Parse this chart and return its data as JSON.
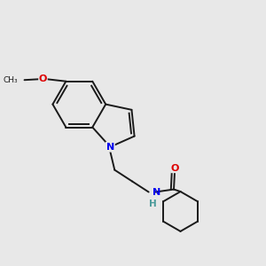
{
  "background_color": "#e8e8e8",
  "bond_color": "#1a1a1a",
  "N_color": "#0000ee",
  "O_color": "#dd0000",
  "NH_N_color": "#0000ee",
  "NH_H_color": "#4a9a9a",
  "line_width": 1.4,
  "figsize": [
    3.0,
    3.0
  ],
  "dpi": 100,
  "xlim": [
    -0.3,
    5.5
  ],
  "ylim": [
    0.5,
    5.2
  ]
}
